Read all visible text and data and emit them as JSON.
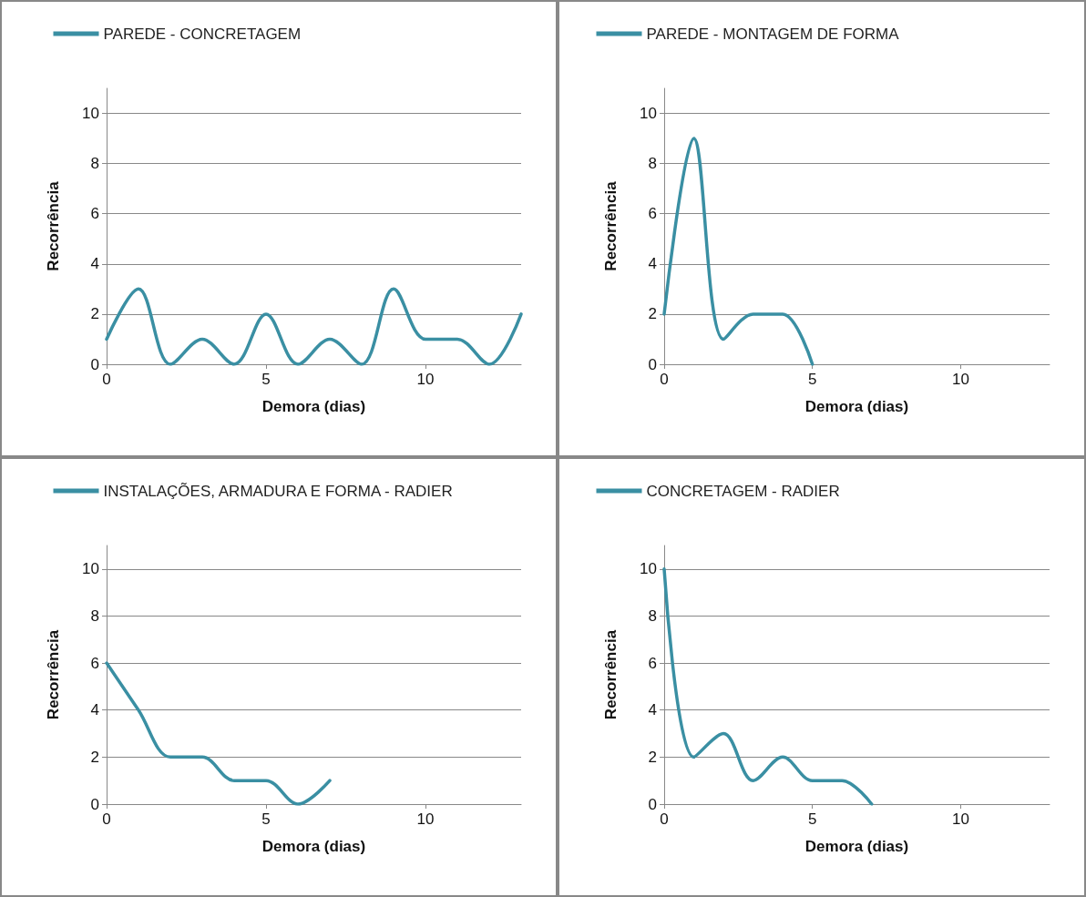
{
  "chart_data": [
    {
      "type": "line",
      "x": [
        0,
        1,
        2,
        3,
        4,
        5,
        6,
        7,
        8,
        9,
        10,
        11,
        12,
        13
      ],
      "series": [
        {
          "name": "PAREDE - CONCRETAGEM",
          "color": "#3a8fa3",
          "values": [
            1,
            3,
            0,
            1,
            0,
            2,
            0,
            1,
            0,
            3,
            1,
            1,
            0,
            2
          ]
        }
      ],
      "xlim": [
        0,
        13
      ],
      "xticks": [
        0,
        5,
        10
      ],
      "ylim": [
        0,
        11
      ],
      "yticks": [
        0,
        2,
        4,
        6,
        8,
        10
      ],
      "xlabel": "Demora (dias)",
      "ylabel": "Recorrência",
      "grid": "y",
      "legend": "top"
    },
    {
      "type": "line",
      "x": [
        0,
        1,
        2,
        3,
        4,
        5
      ],
      "series": [
        {
          "name": "PAREDE - MONTAGEM DE FORMA",
          "color": "#3a8fa3",
          "values": [
            2,
            9,
            1,
            2,
            2,
            0
          ]
        }
      ],
      "xlim": [
        0,
        13
      ],
      "xticks": [
        0,
        5,
        10
      ],
      "ylim": [
        0,
        11
      ],
      "yticks": [
        0,
        2,
        4,
        6,
        8,
        10
      ],
      "xlabel": "Demora (dias)",
      "ylabel": "Recorrência",
      "grid": "y",
      "legend": "top"
    },
    {
      "type": "line",
      "x": [
        0,
        1,
        2,
        3,
        4,
        5,
        6,
        7
      ],
      "series": [
        {
          "name": "INSTALAÇÕES, ARMADURA E FORMA - RADIER",
          "color": "#3a8fa3",
          "values": [
            6,
            4,
            2,
            2,
            1,
            1,
            0,
            1
          ]
        }
      ],
      "xlim": [
        0,
        13
      ],
      "xticks": [
        0,
        5,
        10
      ],
      "ylim": [
        0,
        11
      ],
      "yticks": [
        0,
        2,
        4,
        6,
        8,
        10
      ],
      "xlabel": "Demora (dias)",
      "ylabel": "Recorrência",
      "grid": "y",
      "legend": "top"
    },
    {
      "type": "line",
      "x": [
        0,
        1,
        2,
        3,
        4,
        5,
        6,
        7
      ],
      "series": [
        {
          "name": "CONCRETAGEM - RADIER",
          "color": "#3a8fa3",
          "values": [
            10,
            2,
            3,
            1,
            2,
            1,
            1,
            0
          ]
        }
      ],
      "xlim": [
        0,
        13
      ],
      "xticks": [
        0,
        5,
        10
      ],
      "ylim": [
        0,
        11
      ],
      "yticks": [
        0,
        2,
        4,
        6,
        8,
        10
      ],
      "xlabel": "Demora (dias)",
      "ylabel": "Recorrência",
      "grid": "y",
      "legend": "top"
    }
  ]
}
